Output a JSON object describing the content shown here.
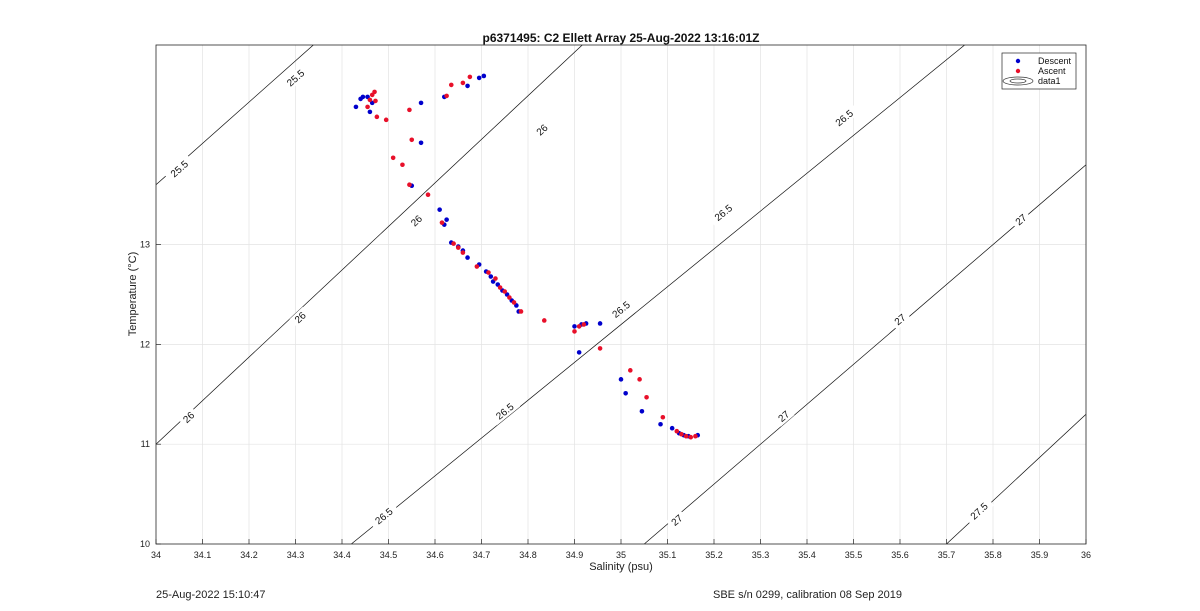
{
  "chart_data": {
    "type": "scatter",
    "title": "p6371495: C2 Ellett Array 25-Aug-2022 13:16:01Z",
    "xlabel": "Salinity (psu)",
    "ylabel": "Temperature (°C)",
    "xlim": [
      34,
      36
    ],
    "ylim": [
      10,
      15
    ],
    "xticks": [
      "34",
      "34.1",
      "34.2",
      "34.3",
      "34.4",
      "34.5",
      "34.6",
      "34.7",
      "34.8",
      "34.9",
      "35",
      "35.1",
      "35.2",
      "35.3",
      "35.4",
      "35.5",
      "35.6",
      "35.7",
      "35.8",
      "35.9",
      "36"
    ],
    "yticks": [
      "10",
      "11",
      "12",
      "13"
    ],
    "ytick_values": [
      10,
      11,
      12,
      13
    ],
    "grid": true,
    "legend_placement": "top-right",
    "legend": [
      "Descent",
      "Ascent",
      "data1"
    ],
    "series": [
      {
        "name": "Descent",
        "color": "#0000cc",
        "points": [
          [
            34.43,
            14.38
          ],
          [
            34.44,
            14.46
          ],
          [
            34.445,
            14.48
          ],
          [
            34.455,
            14.48
          ],
          [
            34.46,
            14.33
          ],
          [
            34.465,
            14.42
          ],
          [
            34.57,
            14.42
          ],
          [
            34.62,
            14.48
          ],
          [
            34.67,
            14.59
          ],
          [
            34.695,
            14.67
          ],
          [
            34.705,
            14.69
          ],
          [
            34.55,
            13.59
          ],
          [
            34.57,
            14.02
          ],
          [
            34.61,
            13.35
          ],
          [
            34.62,
            13.2
          ],
          [
            34.625,
            13.25
          ],
          [
            34.635,
            13.02
          ],
          [
            34.65,
            12.98
          ],
          [
            34.66,
            12.94
          ],
          [
            34.67,
            12.87
          ],
          [
            34.695,
            12.8
          ],
          [
            34.71,
            12.73
          ],
          [
            34.72,
            12.68
          ],
          [
            34.725,
            12.63
          ],
          [
            34.735,
            12.6
          ],
          [
            34.745,
            12.54
          ],
          [
            34.755,
            12.5
          ],
          [
            34.765,
            12.44
          ],
          [
            34.775,
            12.39
          ],
          [
            34.78,
            12.33
          ],
          [
            34.9,
            12.18
          ],
          [
            34.91,
            11.92
          ],
          [
            34.915,
            12.2
          ],
          [
            34.925,
            12.21
          ],
          [
            34.955,
            12.21
          ],
          [
            35.0,
            11.65
          ],
          [
            35.01,
            11.51
          ],
          [
            35.045,
            11.33
          ],
          [
            35.085,
            11.2
          ],
          [
            35.11,
            11.16
          ],
          [
            35.125,
            11.11
          ],
          [
            35.135,
            11.09
          ],
          [
            35.145,
            11.08
          ],
          [
            35.165,
            11.09
          ]
        ]
      },
      {
        "name": "Ascent",
        "color": "#e8102a",
        "points": [
          [
            34.455,
            14.38
          ],
          [
            34.46,
            14.45
          ],
          [
            34.465,
            14.5
          ],
          [
            34.47,
            14.53
          ],
          [
            34.472,
            14.44
          ],
          [
            34.475,
            14.28
          ],
          [
            34.495,
            14.25
          ],
          [
            34.51,
            13.87
          ],
          [
            34.53,
            13.8
          ],
          [
            34.545,
            14.35
          ],
          [
            34.55,
            14.05
          ],
          [
            34.545,
            13.6
          ],
          [
            34.585,
            13.5
          ],
          [
            34.615,
            13.22
          ],
          [
            34.625,
            14.49
          ],
          [
            34.635,
            14.6
          ],
          [
            34.66,
            14.62
          ],
          [
            34.675,
            14.68
          ],
          [
            34.64,
            13.01
          ],
          [
            34.65,
            12.97
          ],
          [
            34.66,
            12.92
          ],
          [
            34.69,
            12.78
          ],
          [
            34.715,
            12.72
          ],
          [
            34.73,
            12.66
          ],
          [
            34.74,
            12.57
          ],
          [
            34.75,
            12.53
          ],
          [
            34.76,
            12.47
          ],
          [
            34.77,
            12.42
          ],
          [
            34.785,
            12.33
          ],
          [
            34.835,
            12.24
          ],
          [
            34.9,
            12.13
          ],
          [
            34.91,
            12.18
          ],
          [
            34.92,
            12.2
          ],
          [
            34.955,
            11.96
          ],
          [
            35.02,
            11.74
          ],
          [
            35.04,
            11.65
          ],
          [
            35.055,
            11.47
          ],
          [
            35.09,
            11.27
          ],
          [
            35.12,
            11.13
          ],
          [
            35.13,
            11.1
          ],
          [
            35.14,
            11.08
          ],
          [
            35.15,
            11.07
          ],
          [
            35.16,
            11.08
          ]
        ]
      }
    ],
    "density_contours": [
      25.5,
      26,
      26.5,
      27,
      27.5
    ]
  },
  "footer": {
    "timestamp": "25-Aug-2022 15:10:47",
    "calibration": "SBE s/n 0299, calibration 08 Sep 2019"
  }
}
